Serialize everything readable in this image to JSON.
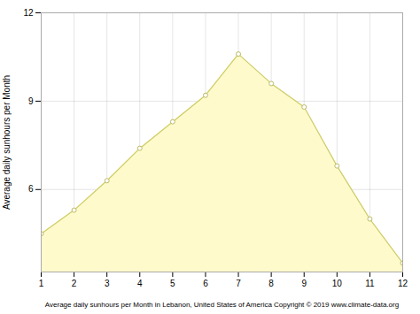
{
  "chart_data": {
    "type": "area",
    "ylabel": "Average daily sunhours per Month",
    "xlabel": "Average daily sunhours per Month in Lebanon, United States of America Copyright © 2019 www.climate-data.org",
    "x": [
      1,
      2,
      3,
      4,
      5,
      6,
      7,
      8,
      9,
      10,
      11,
      12
    ],
    "values": [
      4.5,
      5.3,
      6.3,
      7.4,
      8.3,
      9.2,
      10.6,
      9.6,
      8.8,
      6.8,
      5.0,
      3.5
    ],
    "color": "#FFFACC",
    "marker": "circle",
    "xlim": [
      1,
      12
    ],
    "xticks": [
      1,
      2,
      3,
      4,
      5,
      6,
      7,
      8,
      9,
      10,
      11,
      12
    ],
    "ylim": [
      3.2,
      12
    ],
    "yticks": [
      6,
      9,
      12
    ],
    "grid": true
  }
}
